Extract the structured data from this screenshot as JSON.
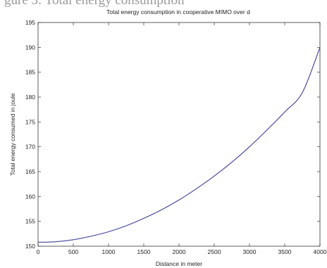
{
  "figure_caption_fragment": "gure 3: Total energy consumption",
  "chart_data": {
    "type": "line",
    "title": "Total energy consumption in cooperative MIMO over d",
    "xlabel": "Distance in meter",
    "ylabel": "Total energy consumed in joule",
    "xlim": [
      0,
      4000
    ],
    "ylim": [
      150,
      195
    ],
    "xticks": [
      0,
      500,
      1000,
      1500,
      2000,
      2500,
      3000,
      3500,
      4000
    ],
    "yticks": [
      150,
      155,
      160,
      165,
      170,
      175,
      180,
      185,
      190,
      195
    ],
    "grid": false,
    "legend": "none",
    "line_color": "#3f3f9a",
    "series": [
      {
        "x": [
          0,
          250,
          500,
          750,
          1000,
          1250,
          1500,
          1750,
          2000,
          2250,
          2500,
          2750,
          3000,
          3250,
          3500,
          3750,
          4000
        ],
        "y": [
          150.8,
          150.9,
          151.3,
          152.0,
          152.9,
          154.1,
          155.6,
          157.3,
          159.3,
          161.6,
          164.1,
          166.9,
          170.0,
          173.4,
          177.0,
          180.9,
          190.0
        ]
      }
    ]
  }
}
